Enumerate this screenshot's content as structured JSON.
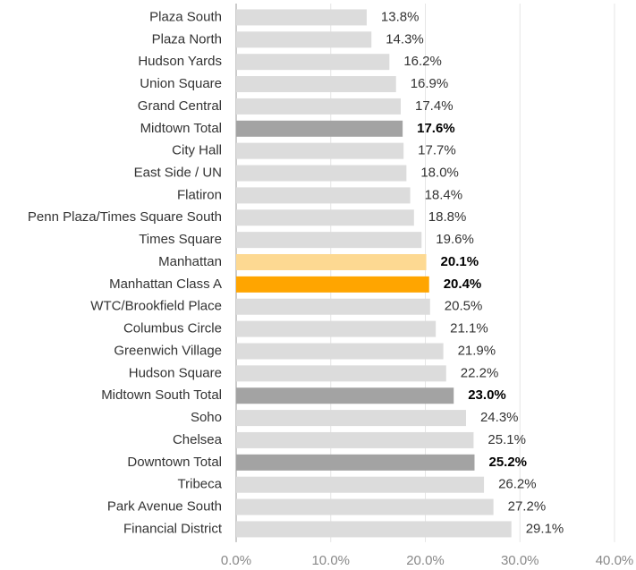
{
  "chart_data": {
    "type": "barh",
    "categories": [
      "Plaza South",
      "Plaza North",
      "Hudson Yards",
      "Union Square",
      "Grand Central",
      "Midtown Total",
      "City Hall",
      "East Side / UN",
      "Flatiron",
      "Penn Plaza/Times Square South",
      "Times Square",
      "Manhattan",
      "Manhattan Class A",
      "WTC/Brookfield Place",
      "Columbus Circle",
      "Greenwich Village",
      "Hudson Square",
      "Midtown South Total",
      "Soho",
      "Chelsea",
      "Downtown Total",
      "Tribeca",
      "Park Avenue South",
      "Financial District"
    ],
    "values": [
      13.8,
      14.3,
      16.2,
      16.9,
      17.4,
      17.6,
      17.7,
      18.0,
      18.4,
      18.8,
      19.6,
      20.1,
      20.4,
      20.5,
      21.1,
      21.9,
      22.2,
      23.0,
      24.3,
      25.1,
      25.2,
      26.2,
      27.2,
      29.1
    ],
    "value_labels": [
      "13.8%",
      "14.3%",
      "16.2%",
      "16.9%",
      "17.4%",
      "17.6%",
      "17.7%",
      "18.0%",
      "18.4%",
      "18.8%",
      "19.6%",
      "20.1%",
      "20.4%",
      "20.5%",
      "21.1%",
      "21.9%",
      "22.2%",
      "23.0%",
      "24.3%",
      "25.1%",
      "25.2%",
      "26.2%",
      "27.2%",
      "29.1%"
    ],
    "default_color": "#dcdcdc",
    "colors": [
      "#dcdcdc",
      "#dcdcdc",
      "#dcdcdc",
      "#dcdcdc",
      "#dcdcdc",
      "#a3a3a3",
      "#dcdcdc",
      "#dcdcdc",
      "#dcdcdc",
      "#dcdcdc",
      "#dcdcdc",
      "#fdd992",
      "#ffa500",
      "#dcdcdc",
      "#dcdcdc",
      "#dcdcdc",
      "#dcdcdc",
      "#a3a3a3",
      "#dcdcdc",
      "#dcdcdc",
      "#a3a3a3",
      "#dcdcdc",
      "#dcdcdc",
      "#dcdcdc"
    ],
    "xlim": [
      0,
      40
    ],
    "xticks": [
      {
        "value": 0,
        "label": "0.0%"
      },
      {
        "value": 10,
        "label": "10.0%"
      },
      {
        "value": 20,
        "label": "20.0%"
      },
      {
        "value": 30,
        "label": "30.0%"
      },
      {
        "value": 40,
        "label": "40.0%"
      }
    ],
    "grid": true
  }
}
